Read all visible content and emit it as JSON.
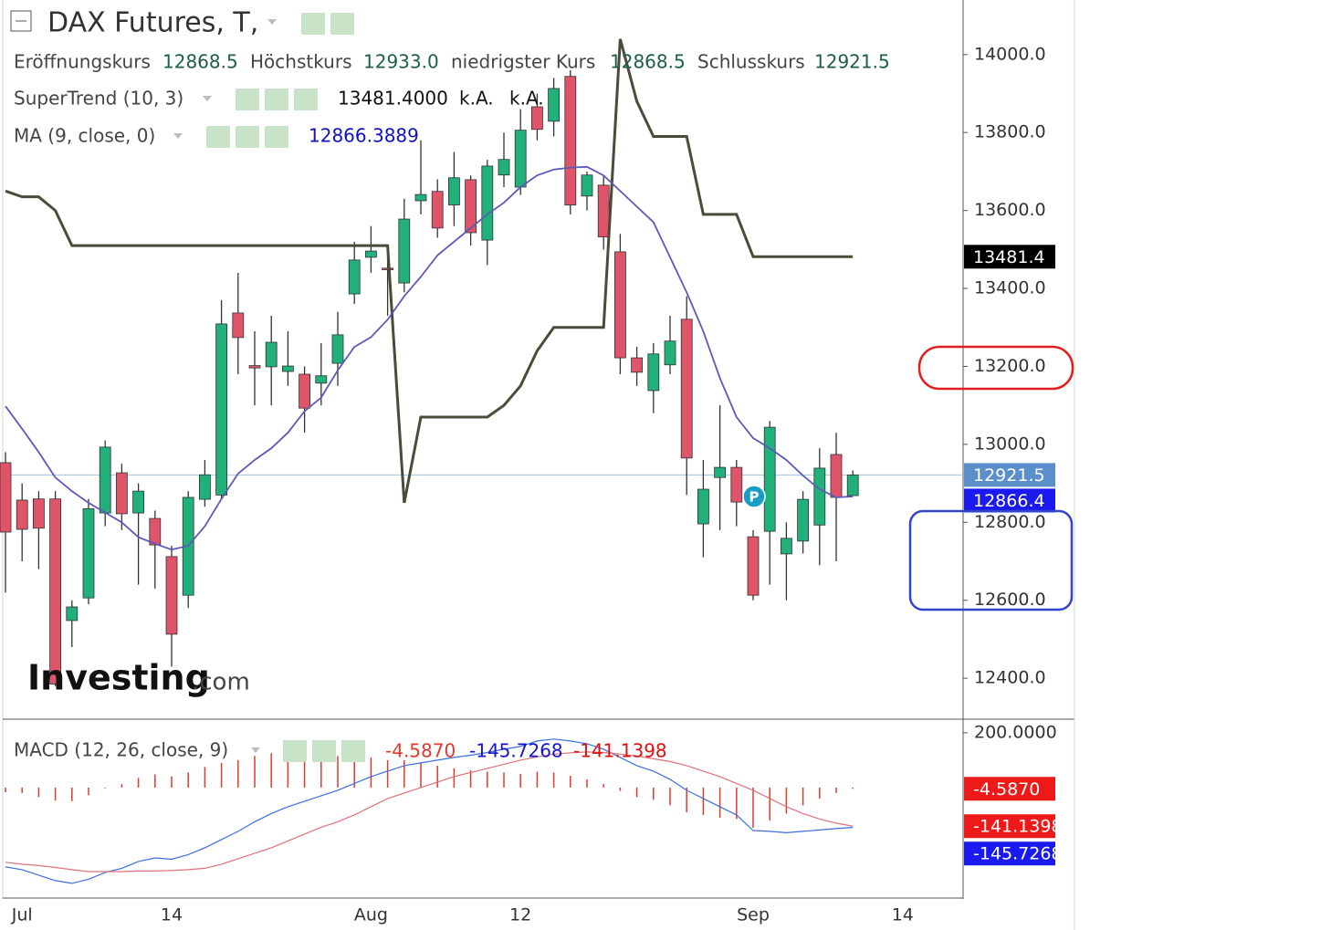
{
  "chart_data": [
    {
      "type": "candlestick",
      "title": "DAX Futures, T,",
      "ohlc_legend": [
        {
          "name": "Eröffnungskurs",
          "label": "12868.5"
        },
        {
          "name": "Höchstkurs",
          "label": "12933.0"
        },
        {
          "name": "niedrigster Kurs",
          "label": "12868.5"
        },
        {
          "name": "Schlusskurs",
          "label": "12921.5"
        }
      ],
      "categories": [
        null,
        "Jul",
        null,
        null,
        null,
        null,
        null,
        null,
        null,
        null,
        "14",
        null,
        null,
        null,
        null,
        null,
        null,
        null,
        null,
        null,
        null,
        null,
        "Aug",
        null,
        null,
        null,
        null,
        null,
        null,
        null,
        null,
        "12",
        null,
        null,
        null,
        null,
        null,
        null,
        null,
        null,
        null,
        null,
        null,
        null,
        null,
        "Sep",
        null,
        null,
        null,
        null,
        null,
        null,
        null,
        null,
        "14",
        null
      ],
      "candles": {
        "open": [
          12953,
          12857,
          12860,
          12860,
          12548,
          12606,
          12824,
          12927,
          12824,
          12810,
          12712,
          12613,
          12859,
          12870,
          13337,
          13202,
          13199,
          13187,
          13180,
          13157,
          13208,
          13386,
          13480,
          13452,
          13414,
          13625,
          13649,
          13614,
          13679,
          13524,
          13691,
          13660,
          13866,
          13829,
          13944,
          13637,
          13665,
          13494,
          13222,
          13138,
          13204,
          13321,
          12796,
          12915,
          12941,
          12763,
          12777,
          12719,
          12752,
          12793,
          12974,
          12868.5,
          null,
          null,
          null,
          null
        ],
        "high": [
          12980,
          12900,
          12880,
          12880,
          12600,
          12860,
          13010,
          12950,
          12900,
          12830,
          12740,
          12880,
          12960,
          13370,
          13440,
          13290,
          13330,
          13290,
          13200,
          13260,
          13340,
          13520,
          13560,
          13510,
          13630,
          13780,
          13680,
          13750,
          13690,
          13730,
          13800,
          13860,
          13900,
          13940,
          13960,
          13700,
          13690,
          13540,
          13250,
          13260,
          13330,
          13380,
          12960,
          13100,
          12960,
          12780,
          13060,
          12800,
          12880,
          12990,
          13030,
          12933,
          null,
          null,
          null,
          null
        ],
        "low": [
          12620,
          12700,
          12680,
          12380,
          12480,
          12590,
          12790,
          12780,
          12640,
          12630,
          12430,
          12580,
          12840,
          12860,
          13180,
          13100,
          13100,
          13150,
          13030,
          13100,
          13150,
          13360,
          13440,
          13330,
          13390,
          13590,
          13530,
          13560,
          13510,
          13460,
          13660,
          13640,
          13780,
          13790,
          13590,
          13600,
          13500,
          13180,
          13150,
          13080,
          13180,
          12870,
          12710,
          12780,
          12790,
          12600,
          12640,
          12600,
          12720,
          12690,
          12700,
          12868.5,
          null,
          null,
          null,
          null
        ],
        "close": [
          12775,
          12782,
          12785,
          12385,
          12583,
          12835,
          12993,
          12822,
          12880,
          12742,
          12513,
          12864,
          12922,
          13309,
          13274,
          13196,
          13262,
          13201,
          13093,
          13176,
          13281,
          13473,
          13496,
          13448,
          13578,
          13641,
          13555,
          13684,
          13543,
          13714,
          13731,
          13806,
          13808,
          13913,
          13614,
          13691,
          13532,
          13222,
          13185,
          13232,
          13265,
          12965,
          12885,
          12941,
          12852,
          12613,
          13044,
          12759,
          12859,
          12939,
          12864,
          12921.5,
          null,
          null,
          null,
          null
        ]
      },
      "up_color": "#22b07a",
      "down_color": "#de5468",
      "close_line_color": "#9ec3e6",
      "close_box_color": "#5b8fc9",
      "series": [
        {
          "name": "SuperTrend (10, 3)",
          "color": "#4b4b3a",
          "legend_label": "13481.4000",
          "extra_labels": [
            "k.A.",
            "k.A."
          ],
          "axis_label": "13481.4",
          "box_color": "#000000",
          "values": [
            13650,
            13635,
            13635,
            13600,
            13510,
            13510,
            13510,
            13510,
            13510,
            13510,
            13510,
            13510,
            13510,
            13510,
            13510,
            13510,
            13510,
            13510,
            13510,
            13510,
            13510,
            13510,
            13510,
            13510,
            12850,
            13070,
            13070,
            13070,
            13070,
            13070,
            13100,
            13150,
            13240,
            13300,
            13300,
            13300,
            13300,
            14040,
            13880,
            13790,
            13790,
            13790,
            13590,
            13590,
            13590,
            13481.4,
            13481.4,
            13481.4,
            13481.4,
            13481.4,
            13481.4,
            13481.4,
            null,
            null,
            null,
            null
          ]
        },
        {
          "name": "MA (9, close, 0)",
          "color": "#5a5ab8",
          "legend_color": "#1010c0",
          "axis_label": "12866.4",
          "box_color": "#1a1aee",
          "values": [
            13098,
            13040,
            12980,
            12915,
            12880,
            12850,
            12825,
            12800,
            12762,
            12745,
            12730,
            12740,
            12790,
            12860,
            12925,
            12960,
            12990,
            13030,
            13085,
            13120,
            13190,
            13250,
            13275,
            13320,
            13380,
            13430,
            13485,
            13520,
            13555,
            13590,
            13620,
            13660,
            13690,
            13705,
            13710,
            13712,
            13690,
            13650,
            13610,
            13570,
            13480,
            13390,
            13290,
            13170,
            13070,
            13016,
            12990,
            12960,
            12920,
            12885,
            12864,
            12866.3889,
            null,
            null,
            null,
            null
          ]
        }
      ],
      "ylim": [
        12295,
        14140
      ],
      "yticks": [
        {
          "value": 12400,
          "label": "12400.0"
        },
        {
          "value": 12600,
          "label": "12600.0"
        },
        {
          "value": 12800,
          "label": "12800.0"
        },
        {
          "value": 13000,
          "label": "13000.0"
        },
        {
          "value": 13200,
          "label": "13200.0"
        },
        {
          "value": 13400,
          "label": "13400.0"
        },
        {
          "value": 13600,
          "label": "13600.0"
        },
        {
          "value": 13800,
          "label": "13800.0"
        },
        {
          "value": 14000,
          "label": "14000.0"
        }
      ],
      "watermark": {
        "brand": "Investing",
        "suffix": ".com"
      },
      "marker": "P"
    },
    {
      "type": "macd",
      "title": "MACD (12, 26, close, 9)",
      "histogram": {
        "color": "#e0392b",
        "legend_label": "-4.5870",
        "values": [
          -17,
          -20,
          -35,
          -48,
          -50,
          -28,
          -3,
          12,
          35,
          48,
          41,
          55,
          75,
          90,
          100,
          115,
          125,
          125,
          120,
          115,
          115,
          115,
          110,
          100,
          100,
          90,
          80,
          70,
          63,
          58,
          55,
          50,
          58,
          55,
          43,
          30,
          12,
          -12,
          -35,
          -45,
          -65,
          -90,
          -100,
          -110,
          -115,
          -147,
          -120,
          -95,
          -65,
          -40,
          -20,
          -4.587,
          null,
          null,
          null,
          null
        ]
      },
      "macd": {
        "color": "#3d6ee0",
        "legend_color": "#1515d0",
        "legend_label": "-145.7268",
        "box_color": "#1a1aee",
        "values": [
          -290,
          -300,
          -320,
          -340,
          -350,
          -335,
          -310,
          -295,
          -270,
          -257,
          -262,
          -245,
          -220,
          -190,
          -160,
          -125,
          -95,
          -70,
          -50,
          -30,
          -10,
          15,
          40,
          60,
          80,
          90,
          100,
          110,
          118,
          128,
          140,
          150,
          170,
          177,
          170,
          160,
          140,
          110,
          80,
          60,
          30,
          -10,
          -40,
          -70,
          -100,
          -157,
          -160,
          -165,
          -160,
          -155,
          -150,
          -145.7268,
          null,
          null,
          null,
          null
        ]
      },
      "signal": {
        "color": "#e0707a",
        "legend_color": "#e01010",
        "legend_label": "-141.1398",
        "box_color": "#ee1a1a",
        "values": [
          -273,
          -280,
          -285,
          -292,
          -300,
          -307,
          -307,
          -307,
          -305,
          -305,
          -303,
          -300,
          -295,
          -280,
          -260,
          -240,
          -220,
          -195,
          -170,
          -145,
          -125,
          -100,
          -70,
          -40,
          -20,
          0,
          20,
          40,
          55,
          70,
          85,
          100,
          112,
          122,
          127,
          130,
          128,
          122,
          115,
          105,
          95,
          80,
          60,
          40,
          15,
          -10,
          -40,
          -70,
          -95,
          -115,
          -130,
          -141.1398,
          null,
          null,
          null,
          null
        ]
      },
      "ylim": [
        -407,
        243
      ],
      "yticks": [
        {
          "value": 200,
          "label": "200.0000"
        }
      ]
    }
  ]
}
